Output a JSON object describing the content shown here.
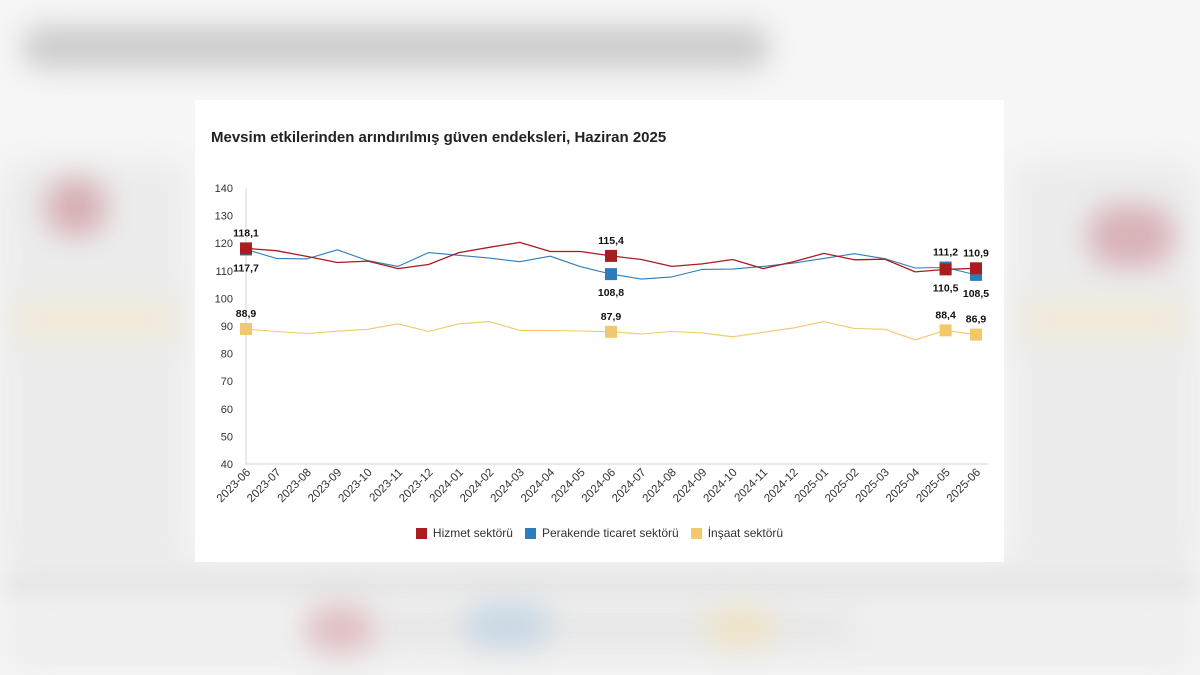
{
  "chart_data": {
    "type": "line",
    "title": "Mevsim etkilerinden arındırılmış güven endeksleri, Haziran 2025",
    "ylim": [
      40,
      140
    ],
    "yticks": [
      40,
      50,
      60,
      70,
      80,
      90,
      100,
      110,
      120,
      130,
      140
    ],
    "grid": false,
    "categories": [
      "2023-06",
      "2023-07",
      "2023-08",
      "2023-09",
      "2023-10",
      "2023-11",
      "2023-12",
      "2024-01",
      "2024-02",
      "2024-03",
      "2024-04",
      "2024-05",
      "2024-06",
      "2024-07",
      "2024-08",
      "2024-09",
      "2024-10",
      "2024-11",
      "2024-12",
      "2025-01",
      "2025-02",
      "2025-03",
      "2025-04",
      "2025-05",
      "2025-06"
    ],
    "series": [
      {
        "name": "Hizmet sektörü",
        "color": "#a71d22",
        "values": [
          118.1,
          117.3,
          115.2,
          113.0,
          113.5,
          110.8,
          112.3,
          116.6,
          118.5,
          120.3,
          117.0,
          117.0,
          115.4,
          114.1,
          111.6,
          112.5,
          114.1,
          110.8,
          113.3,
          116.3,
          114.0,
          114.2,
          109.6,
          110.5,
          110.9
        ]
      },
      {
        "name": "Perakende ticaret sektörü",
        "color": "#2e7dba",
        "values": [
          117.7,
          114.5,
          114.3,
          117.6,
          113.7,
          111.6,
          116.6,
          115.6,
          114.6,
          113.3,
          115.3,
          111.5,
          108.8,
          107.0,
          107.8,
          110.5,
          110.6,
          111.6,
          112.8,
          114.5,
          116.2,
          114.4,
          111.0,
          111.2,
          108.5
        ]
      },
      {
        "name": "İnşaat sektörü",
        "color": "#f2c96a",
        "values": [
          88.9,
          88.0,
          87.3,
          88.1,
          88.8,
          90.8,
          88.0,
          90.8,
          91.6,
          88.4,
          88.4,
          88.2,
          87.9,
          87.1,
          88.0,
          87.5,
          86.1,
          87.7,
          89.3,
          91.6,
          89.1,
          88.8,
          85.0,
          88.4,
          86.9
        ]
      }
    ],
    "markers_at_index": [
      0,
      12,
      23,
      24
    ],
    "annotations": [
      {
        "series_index": 0,
        "category_index": 0,
        "text": "118,1"
      },
      {
        "series_index": 1,
        "category_index": 0,
        "text": "117,7"
      },
      {
        "series_index": 2,
        "category_index": 0,
        "text": "88,9"
      },
      {
        "series_index": 0,
        "category_index": 12,
        "text": "115,4"
      },
      {
        "series_index": 1,
        "category_index": 12,
        "text": "108,8"
      },
      {
        "series_index": 2,
        "category_index": 12,
        "text": "87,9"
      },
      {
        "series_index": 1,
        "category_index": 23,
        "text": "111,2"
      },
      {
        "series_index": 0,
        "category_index": 23,
        "text": "110,5"
      },
      {
        "series_index": 2,
        "category_index": 23,
        "text": "88,4"
      },
      {
        "series_index": 0,
        "category_index": 24,
        "text": "110,9"
      },
      {
        "series_index": 1,
        "category_index": 24,
        "text": "108,5"
      },
      {
        "series_index": 2,
        "category_index": 24,
        "text": "86,9"
      }
    ]
  },
  "colors": {
    "card_background": "#ffffff",
    "title": "#222222",
    "axis": "#d6d6d6",
    "page_background": "#f6f6f6"
  }
}
